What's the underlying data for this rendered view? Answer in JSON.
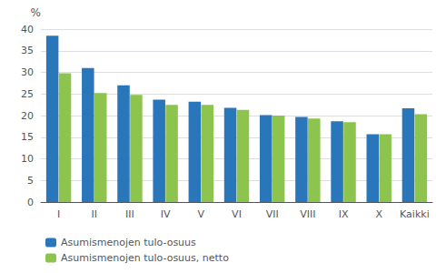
{
  "chart_data": {
    "type": "bar",
    "ylabel": "%",
    "categories": [
      "I",
      "II",
      "III",
      "IV",
      "V",
      "VI",
      "VII",
      "VIII",
      "IX",
      "X",
      "Kaikki"
    ],
    "series": [
      {
        "name": "Asumismenojen tulo-osuus",
        "color": "#2976BB",
        "values": [
          38.5,
          31.0,
          27.0,
          23.7,
          23.2,
          21.8,
          20.1,
          19.7,
          18.7,
          15.7,
          21.7
        ]
      },
      {
        "name": "Asumismenojen tulo-osuus, netto",
        "color": "#8DC44E",
        "values": [
          29.8,
          25.2,
          24.8,
          22.5,
          22.5,
          21.3,
          20.0,
          19.3,
          18.5,
          15.7,
          20.3
        ]
      }
    ],
    "ylim": [
      0,
      40
    ],
    "yticks": [
      0,
      5,
      10,
      15,
      20,
      25,
      30,
      35,
      40
    ],
    "grid": true,
    "legend": "bottom"
  }
}
